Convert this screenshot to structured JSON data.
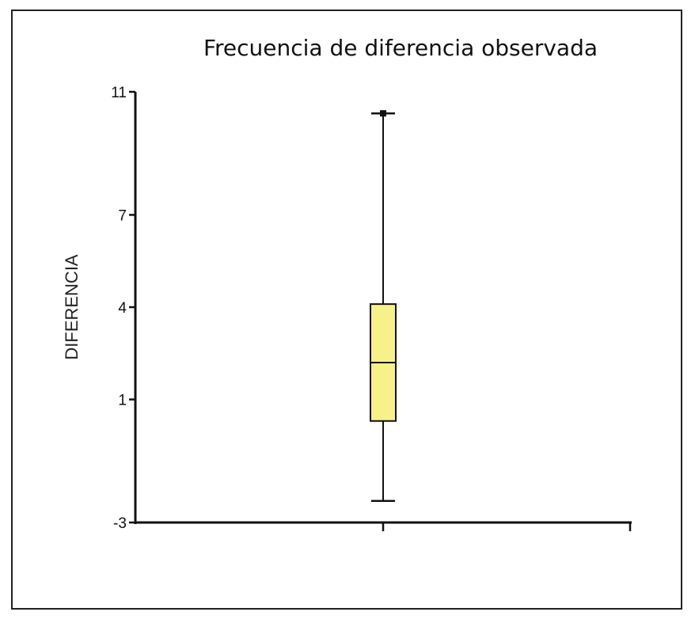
{
  "chart_data": {
    "type": "box",
    "title": "Frecuencia de diferencia observada",
    "xlabel": "",
    "ylabel": "DIFERENCIA",
    "ylim": [
      -3,
      11
    ],
    "yticks": [
      -3,
      1,
      4,
      7,
      11
    ],
    "ytick_labels": [
      "-3",
      "1",
      "4",
      "7",
      "11"
    ],
    "boxes": [
      {
        "min": -2.3,
        "q1": 0.3,
        "median": 2.2,
        "q3": 4.1,
        "max": 10.3,
        "outliers": [
          10.3
        ]
      }
    ],
    "colors": {
      "box_fill": "#F7F18C",
      "line": "#111111"
    },
    "grid": false
  }
}
